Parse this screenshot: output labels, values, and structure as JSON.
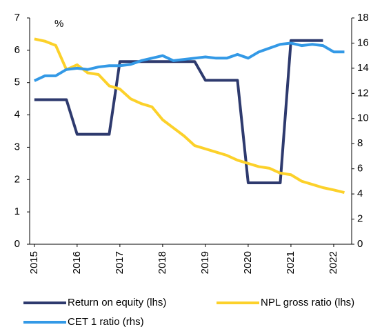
{
  "chart_data": {
    "type": "line",
    "y_unit_label": "%",
    "x": [
      2015,
      2015.25,
      2015.5,
      2015.75,
      2016,
      2016.25,
      2016.5,
      2016.75,
      2017,
      2017.25,
      2017.5,
      2017.75,
      2018,
      2018.25,
      2018.5,
      2018.75,
      2019,
      2019.25,
      2019.5,
      2019.75,
      2020,
      2020.25,
      2020.5,
      2020.75,
      2021,
      2021.25,
      2021.5,
      2021.75,
      2022,
      2022.25
    ],
    "xlim": [
      2014.89,
      2022.42
    ],
    "xticks": [
      2015,
      2016,
      2017,
      2018,
      2019,
      2020,
      2021,
      2022
    ],
    "ylim": [
      0,
      7
    ],
    "yticks": [
      0,
      1,
      2,
      3,
      4,
      5,
      6,
      7
    ],
    "y2lim": [
      0,
      18
    ],
    "y2ticks": [
      0,
      2,
      4,
      6,
      8,
      10,
      12,
      14,
      16,
      18
    ],
    "series": [
      {
        "name": "Return on equity (lhs)",
        "color": "#2e3a6e",
        "values": [
          4.47,
          4.47,
          4.47,
          4.47,
          3.4,
          3.4,
          3.4,
          3.4,
          5.65,
          5.65,
          5.65,
          5.65,
          5.65,
          5.65,
          5.65,
          5.65,
          5.07,
          5.07,
          5.07,
          5.07,
          1.9,
          1.9,
          1.9,
          1.9,
          6.3,
          6.3,
          6.3,
          6.3,
          null,
          null
        ]
      },
      {
        "name": "NPL gross ratio (lhs)",
        "color": "#fcd12a",
        "values": [
          6.35,
          6.28,
          6.15,
          5.4,
          5.55,
          5.3,
          5.25,
          4.9,
          4.8,
          4.5,
          4.35,
          4.25,
          3.85,
          3.6,
          3.35,
          3.05,
          2.95,
          2.85,
          2.75,
          2.6,
          2.5,
          2.4,
          2.35,
          2.2,
          2.15,
          1.95,
          1.85,
          1.75,
          1.68,
          1.6
        ]
      },
      {
        "name": "CET 1 ratio (rhs)",
        "color": "#3399e6",
        "axis": "y2",
        "values": [
          13.0,
          13.4,
          13.4,
          13.9,
          14.0,
          13.9,
          14.1,
          14.2,
          14.2,
          14.3,
          14.6,
          14.8,
          15.0,
          14.6,
          14.7,
          14.8,
          14.9,
          14.8,
          14.8,
          15.1,
          14.8,
          15.3,
          15.6,
          15.9,
          16.0,
          15.8,
          15.9,
          15.8,
          15.3,
          15.3
        ]
      }
    ]
  }
}
